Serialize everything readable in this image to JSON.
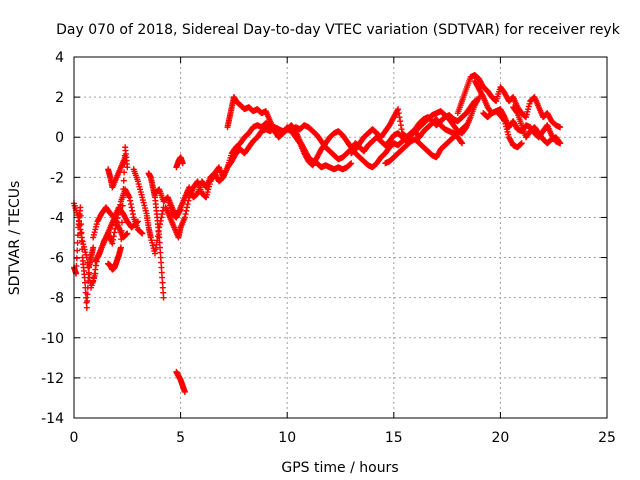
{
  "chart_data": {
    "type": "scatter",
    "title": "Day 070 of 2018, Sidereal Day-to-day VTEC variation (SDTVAR) for receiver reyk",
    "xlabel": "GPS time / hours",
    "ylabel": "SDTVAR / TECUs",
    "xlim": [
      0,
      25
    ],
    "ylim": [
      -14,
      4
    ],
    "xticks": [
      "0",
      "5",
      "10",
      "15",
      "20",
      "25"
    ],
    "yticks": [
      "4",
      "2",
      "0",
      "-2",
      "-4",
      "-6",
      "-8",
      "-10",
      "-12",
      "-14"
    ],
    "xtick_values": [
      0,
      5,
      10,
      15,
      20,
      25
    ],
    "ytick_values": [
      4,
      2,
      0,
      -2,
      -4,
      -6,
      -8,
      -10,
      -12,
      -14
    ],
    "grid": true,
    "marker": "+",
    "series": [
      {
        "name": "reyk",
        "color": "#ff0000",
        "segments": [
          {
            "x": [
              0.0,
              0.1,
              0.2,
              0.3,
              0.4,
              0.5,
              0.6,
              0.7,
              0.8,
              0.9
            ],
            "y": [
              -6.5,
              -6.8,
              -4.5,
              -3.5,
              -6.0,
              -7.0,
              -8.5,
              -6.5,
              -6.0,
              -5.5
            ]
          },
          {
            "x": [
              0.9,
              1.1,
              1.3,
              1.5,
              1.7,
              1.9,
              2.1,
              2.3,
              2.5
            ],
            "y": [
              -7.2,
              -6.0,
              -5.5,
              -5.0,
              -4.5,
              -4.0,
              -4.5,
              -5.0,
              -4.8
            ]
          },
          {
            "x": [
              0.9,
              1.1,
              1.3,
              1.5,
              1.7,
              1.9,
              2.1,
              2.3,
              2.5,
              2.7,
              3.0
            ],
            "y": [
              -5.0,
              -4.2,
              -3.8,
              -3.5,
              -3.8,
              -4.0,
              -3.5,
              -3.8,
              -4.2,
              -4.5,
              -4.2
            ]
          },
          {
            "x": [
              1.6,
              1.7,
              1.8,
              1.9,
              2.0,
              2.1,
              2.2,
              2.3,
              2.4,
              2.5
            ],
            "y": [
              -6.3,
              -6.4,
              -6.6,
              -6.5,
              -6.2,
              -5.9,
              -5.5,
              -3.0,
              -0.5,
              -1.5
            ]
          },
          {
            "x": [
              1.6,
              1.7,
              1.8,
              2.0,
              2.2,
              2.4
            ],
            "y": [
              -1.6,
              -2.0,
              -2.5,
              -2.0,
              -1.5,
              -1.0
            ]
          },
          {
            "x": [
              2.8,
              3.0,
              3.2,
              3.4,
              3.5,
              3.6,
              3.8,
              4.0,
              4.2
            ],
            "y": [
              -1.6,
              -2.2,
              -3.0,
              -3.8,
              -4.5,
              -5.0,
              -5.8,
              -4.5,
              -3.5
            ]
          },
          {
            "x": [
              3.5,
              3.6,
              3.7,
              3.8,
              3.9,
              4.0,
              4.1,
              4.2
            ],
            "y": [
              -1.8,
              -2.0,
              -2.5,
              -3.0,
              -4.0,
              -5.0,
              -6.5,
              -8.0
            ]
          },
          {
            "x": [
              4.3,
              4.5,
              4.7,
              4.9,
              5.0
            ],
            "y": [
              -3.5,
              -4.0,
              -4.5,
              -5.0,
              -4.5
            ]
          },
          {
            "x": [
              4.4,
              4.6,
              4.8,
              5.0,
              5.2,
              5.4,
              5.6,
              5.8,
              6.0,
              6.2,
              6.4,
              6.6,
              6.8,
              7.0,
              7.2,
              7.4,
              7.6,
              7.8,
              8.0,
              8.2,
              8.4,
              8.6,
              8.8,
              9.0,
              9.2,
              9.4,
              9.6,
              9.8,
              10.0,
              10.2,
              10.4,
              10.6,
              10.8,
              11.0,
              11.2,
              11.4,
              11.6,
              11.8,
              12.0,
              12.2,
              12.4,
              12.6,
              12.8,
              13.0,
              13.2,
              13.4,
              13.6,
              13.8,
              14.0,
              14.2,
              14.4,
              14.6,
              14.8,
              15.0,
              15.2,
              15.4,
              15.6,
              15.8,
              16.0,
              16.2,
              16.4,
              16.6,
              16.8,
              17.0,
              17.2,
              17.4,
              17.6,
              17.8,
              18.0,
              18.2,
              18.4,
              18.6,
              18.8
            ],
            "y": [
              -3.0,
              -3.5,
              -4.0,
              -3.5,
              -3.0,
              -2.5,
              -3.0,
              -2.8,
              -2.2,
              -2.5,
              -2.0,
              -1.8,
              -2.2,
              -2.0,
              -1.5,
              -1.2,
              -0.8,
              -0.6,
              -0.8,
              -0.5,
              -0.2,
              0.0,
              0.3,
              0.4,
              0.3,
              0.5,
              0.4,
              0.2,
              0.5,
              0.3,
              0.0,
              -0.3,
              -0.8,
              -1.2,
              -1.4,
              -1.0,
              -0.6,
              -0.3,
              0.0,
              0.2,
              0.3,
              0.1,
              -0.2,
              -0.5,
              -0.8,
              -1.0,
              -1.2,
              -1.4,
              -1.5,
              -1.3,
              -1.0,
              -0.8,
              -0.5,
              -0.3,
              -0.4,
              -0.2,
              0.0,
              0.2,
              0.4,
              0.7,
              0.9,
              1.0,
              0.8,
              0.6,
              0.8,
              1.0,
              1.1,
              0.9,
              0.8,
              1.0,
              1.2,
              1.5,
              1.8
            ]
          },
          {
            "x": [
              5.0,
              5.2,
              5.4,
              5.6,
              5.8,
              6.0,
              6.2,
              6.4,
              6.6,
              6.8,
              7.0,
              7.2,
              7.4,
              7.6,
              7.8,
              8.0,
              8.2,
              8.4,
              8.6,
              8.8,
              9.0,
              9.2,
              9.4,
              9.6,
              9.8,
              10.0,
              10.2,
              10.4,
              10.6,
              10.8,
              11.0,
              11.2,
              11.4,
              11.6,
              11.8,
              12.0,
              12.2,
              12.4,
              12.6,
              12.8,
              13.0,
              13.2,
              13.4,
              13.6,
              13.8,
              14.0,
              14.2,
              14.4,
              14.6,
              14.8,
              15.0,
              15.2,
              15.4,
              15.6,
              15.8,
              16.0,
              16.2,
              16.4,
              16.6,
              16.8,
              17.0,
              17.2,
              17.4,
              17.6,
              17.8,
              18.0,
              18.2
            ],
            "y": [
              -4.5,
              -4.0,
              -3.0,
              -2.5,
              -2.2,
              -2.8,
              -3.0,
              -2.2,
              -1.8,
              -1.5,
              -2.0,
              -1.5,
              -0.8,
              -0.5,
              -0.3,
              0.0,
              0.2,
              0.5,
              0.6,
              0.5,
              0.7,
              0.6,
              0.5,
              0.4,
              0.3,
              0.4,
              0.3,
              0.5,
              0.4,
              0.6,
              0.5,
              0.3,
              0.1,
              -0.2,
              -0.5,
              -0.7,
              -0.9,
              -1.1,
              -1.0,
              -0.8,
              -0.6,
              -0.3,
              -0.5,
              -0.7,
              -0.4,
              -0.2,
              0.0,
              -0.2,
              -0.4,
              -0.2,
              0.1,
              0.2,
              0.0,
              -0.2,
              0.1,
              0.3,
              0.0,
              0.3,
              0.5,
              0.7,
              0.9,
              0.6,
              0.4,
              0.3,
              0.2,
              0.0,
              -0.3
            ]
          },
          {
            "x": [
              7.2,
              7.3,
              7.4,
              7.5,
              7.6,
              7.8,
              8.0,
              8.2,
              8.4,
              8.6,
              8.8,
              9.0,
              9.2,
              9.4,
              9.6,
              9.8,
              10.0,
              10.2,
              10.4,
              10.6,
              10.8,
              11.0,
              11.2,
              11.4,
              11.6,
              11.8,
              12.0,
              12.2,
              12.4,
              12.6,
              12.8,
              13.0
            ],
            "y": [
              0.5,
              1.0,
              1.5,
              2.0,
              1.8,
              1.6,
              1.4,
              1.5,
              1.3,
              1.4,
              1.2,
              1.3,
              0.8,
              0.3,
              0.0,
              0.2,
              0.4,
              0.6,
              0.3,
              -0.2,
              -0.6,
              -1.0,
              -1.2,
              -1.3,
              -1.5,
              -1.4,
              -1.5,
              -1.6,
              -1.5,
              -1.6,
              -1.5,
              -1.3
            ]
          },
          {
            "x": [
              13.0,
              13.2,
              13.4,
              13.6,
              13.8,
              14.0,
              14.2,
              14.4,
              14.6,
              14.8,
              15.0,
              15.2,
              15.4,
              15.6,
              15.8,
              16.0,
              16.2,
              16.4,
              16.6,
              16.8,
              17.0,
              17.2,
              17.4,
              17.6,
              17.8,
              18.0,
              18.2,
              18.4,
              18.6,
              18.8,
              19.0
            ],
            "y": [
              -0.8,
              -0.6,
              -0.3,
              0.0,
              0.2,
              0.4,
              0.2,
              0.0,
              0.3,
              0.6,
              1.0,
              1.4,
              0.2,
              0.0,
              0.1,
              0.3,
              0.5,
              0.7,
              0.9,
              1.1,
              1.2,
              1.3,
              1.1,
              0.9,
              0.6,
              0.3,
              0.2,
              0.5,
              1.0,
              1.6,
              2.0
            ]
          },
          {
            "x": [
              14.6,
              14.8,
              15.0,
              15.2,
              15.4,
              15.6,
              15.8,
              16.0,
              16.2,
              16.4,
              16.6,
              16.8,
              17.0,
              17.2,
              17.4,
              17.6,
              17.8,
              18.0,
              18.2,
              18.4
            ],
            "y": [
              -1.3,
              -1.2,
              -1.0,
              -0.8,
              -0.6,
              -0.4,
              -0.2,
              -0.1,
              -0.3,
              -0.5,
              -0.7,
              -0.9,
              -1.0,
              -0.6,
              -0.4,
              -0.2,
              0.0,
              0.2,
              0.4,
              0.6
            ]
          },
          {
            "x": [
              18.0,
              18.2,
              18.4,
              18.6,
              18.8,
              19.0,
              19.2,
              19.4,
              19.6,
              19.8,
              20.0,
              20.2,
              20.4,
              20.6,
              20.8,
              21.0,
              21.2,
              21.4,
              21.6,
              21.8,
              22.0,
              22.2,
              22.4,
              22.6,
              22.8
            ],
            "y": [
              1.2,
              1.8,
              2.4,
              3.0,
              3.1,
              2.9,
              2.5,
              2.3,
              2.0,
              1.8,
              2.5,
              2.2,
              1.8,
              2.0,
              1.5,
              1.2,
              1.0,
              1.8,
              2.0,
              1.5,
              1.0,
              1.2,
              0.8,
              0.6,
              0.5
            ]
          },
          {
            "x": [
              18.8,
              19.0,
              19.2,
              19.4,
              19.6,
              19.8,
              20.0,
              20.2,
              20.4,
              20.6,
              20.8,
              21.0,
              21.2,
              21.4,
              21.6,
              21.8,
              22.0,
              22.2,
              22.4,
              22.6,
              22.8
            ],
            "y": [
              2.8,
              2.4,
              2.0,
              1.5,
              1.2,
              1.3,
              1.4,
              1.0,
              0.5,
              0.8,
              0.4,
              0.3,
              0.6,
              0.5,
              0.2,
              0.0,
              0.3,
              0.6,
              0.1,
              -0.2,
              -0.3
            ]
          },
          {
            "x": [
              19.2,
              19.4,
              19.6,
              19.8,
              20.0,
              20.2,
              20.4,
              20.6,
              20.8,
              21.0
            ],
            "y": [
              1.2,
              1.0,
              1.2,
              1.3,
              1.1,
              0.8,
              0.0,
              -0.4,
              -0.5,
              -0.3
            ]
          },
          {
            "x": [
              20.6,
              20.8,
              21.0,
              21.2,
              21.4,
              21.6,
              21.8,
              22.0,
              22.2,
              22.4,
              22.6,
              22.8
            ],
            "y": [
              1.5,
              1.2,
              0.6,
              0.0,
              0.3,
              0.5,
              0.2,
              -0.1,
              -0.3,
              -0.1,
              0.0,
              -0.3
            ]
          },
          {
            "x": [
              0.0,
              0.2,
              0.4,
              0.6,
              0.8,
              1.0
            ],
            "y": [
              -3.3,
              -4.0,
              -5.2,
              -6.0,
              -7.5,
              -6.8
            ]
          },
          {
            "x": [
              1.0,
              1.2,
              1.4,
              1.6,
              1.8,
              2.0,
              2.2,
              2.4,
              2.6,
              2.8,
              3.0,
              3.2
            ],
            "y": [
              -6.2,
              -5.8,
              -5.2,
              -4.8,
              -5.3,
              -4.2,
              -3.2,
              -2.6,
              -3.0,
              -4.0,
              -4.6,
              -4.8
            ]
          },
          {
            "x": [
              3.8,
              4.0,
              4.2,
              4.4,
              4.6,
              4.8,
              5.0
            ],
            "y": [
              -2.8,
              -2.6,
              -3.2,
              -3.0,
              -3.8,
              -4.0,
              -3.6
            ]
          },
          {
            "x": [
              4.8,
              4.9,
              5.0,
              5.1
            ],
            "y": [
              -1.5,
              -1.2,
              -1.0,
              -1.3
            ]
          },
          {
            "x": [
              4.8,
              4.9,
              5.0,
              5.1,
              5.2
            ],
            "y": [
              -11.7,
              -11.9,
              -12.1,
              -12.4,
              -12.7
            ]
          }
        ]
      }
    ]
  }
}
